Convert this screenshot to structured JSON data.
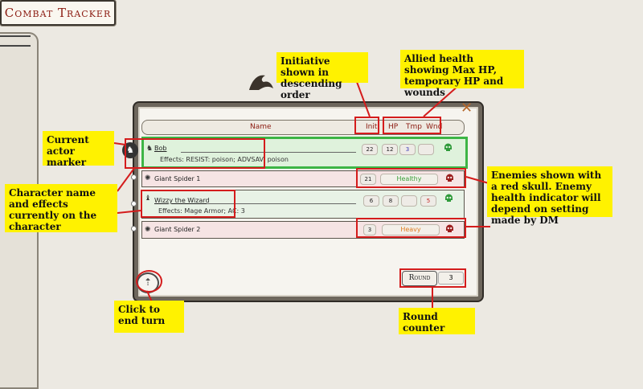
{
  "window": {
    "title": "Combat Tracker"
  },
  "columns": {
    "name": "Name",
    "init": "Init",
    "hp": "HP",
    "tmp": "Tmp",
    "wnd": "Wnd"
  },
  "rows": [
    {
      "name": "Bob",
      "effects": "Effects: RESIST: poison; ADVSAV: poison",
      "init": "22",
      "hp": "12",
      "tmp": "3",
      "wnd": "",
      "faction": "friend",
      "active": true
    },
    {
      "name": "Giant Spider 1",
      "init": "21",
      "status": "Healthy",
      "faction": "foe"
    },
    {
      "name": "Wizzy the Wizard",
      "effects": "Effects: Mage Armor; AC: 3",
      "init": "6",
      "hp": "8",
      "tmp": "",
      "wnd": "5",
      "faction": "friend"
    },
    {
      "name": "Giant Spider 2",
      "init": "3",
      "status": "Heavy",
      "faction": "foe"
    }
  ],
  "round": {
    "label": "Round",
    "value": "3"
  },
  "annotations": {
    "initiative": "Initiative shown in descending order",
    "allied_health": "Allied health showing Max HP, temporary HP and wounds",
    "current_actor": "Current actor marker",
    "character_name": "Character name and effects currently on the character",
    "enemies": "Enemies shown with a red skull. Enemy health indicator will depend on setting made by DM",
    "end_turn": "Click to end turn",
    "round_counter": "Round counter"
  },
  "colors": {
    "friend_skull": "#2e9a3a",
    "foe_skull": "#9b1d1d",
    "callout": "#fff200",
    "highlight": "#d41c1c",
    "active_border": "#3db546"
  }
}
